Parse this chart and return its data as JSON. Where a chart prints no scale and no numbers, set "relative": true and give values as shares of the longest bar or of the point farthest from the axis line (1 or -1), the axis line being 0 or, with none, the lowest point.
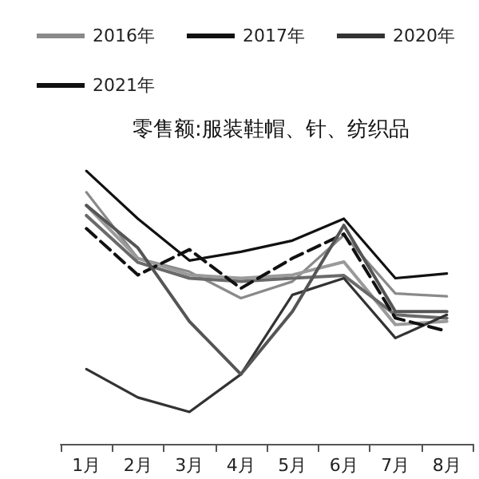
{
  "chart_data": {
    "type": "line",
    "title": "零售额:服装鞋帽、针、纺织品",
    "relative": true,
    "legend": "top",
    "grid": false,
    "marker": "none",
    "categories": [
      "1月",
      "2月",
      "3月",
      "4月",
      "5月",
      "6月",
      "7月",
      "8月"
    ],
    "series": [
      {
        "name": "2016年",
        "color": "#8a8a8a",
        "values": [
          0.922,
          0.68,
          0.631,
          0.534,
          0.595,
          0.765,
          0.551,
          0.541
        ]
      },
      {
        "name": "2017年",
        "color": "#111111",
        "values": [
          1,
          0.825,
          0.672,
          0.704,
          0.745,
          0.825,
          0.607,
          0.624
        ]
      },
      {
        "color": "#9a9a9a",
        "values": [
          0.874,
          0.68,
          0.619,
          0.607,
          0.619,
          0.667,
          0.437,
          0.449
        ]
      },
      {
        "color": "#6a6a6a",
        "values": [
          0.837,
          0.665,
          0.607,
          0.595,
          0.607,
          0.617,
          0.473,
          0.461
        ]
      },
      {
        "name": "2020年",
        "color": "#333333",
        "values": [
          0.274,
          0.17,
          0.117,
          0.255,
          0.546,
          0.607,
          0.388,
          0.473
        ]
      },
      {
        "name": "2021年",
        "color": "#111111",
        "line_style": "dashed",
        "values": [
          0.789,
          0.619,
          0.712,
          0.57,
          0.68,
          0.769,
          0.461,
          0.413
        ]
      },
      {
        "color": "#555555",
        "values": [
          0.874,
          0.718,
          0.449,
          0.255,
          0.485,
          0.801,
          0.485,
          0.485
        ]
      }
    ]
  }
}
